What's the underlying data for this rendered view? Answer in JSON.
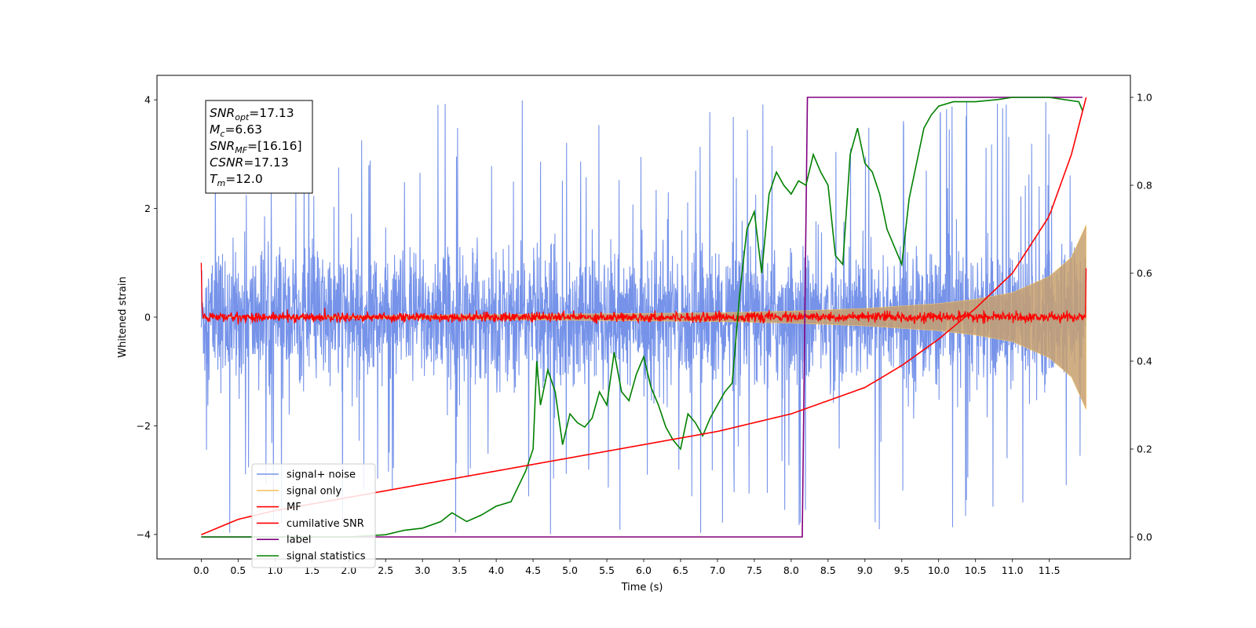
{
  "chart_data": {
    "type": "line",
    "xlabel": "Time (s)",
    "ylabel": "Whitened strain",
    "xlim": [
      -0.6,
      12.6
    ],
    "ylim": [
      -4.45,
      4.45
    ],
    "y2lim": [
      -0.05,
      1.05
    ],
    "x_ticks": [
      0.0,
      0.5,
      1.0,
      1.5,
      2.0,
      2.5,
      3.0,
      3.5,
      4.0,
      4.5,
      5.0,
      5.5,
      6.0,
      6.5,
      7.0,
      7.5,
      8.0,
      8.5,
      9.0,
      9.5,
      10.0,
      10.5,
      11.0,
      11.5
    ],
    "x_tick_labels": [
      "0.0",
      "0.5",
      "1.0",
      "1.5",
      "2.0",
      "2.5",
      "3.0",
      "3.5",
      "4.0",
      "4.5",
      "5.0",
      "5.5",
      "6.0",
      "6.5",
      "7.0",
      "7.5",
      "8.0",
      "8.5",
      "9.0",
      "9.5",
      "10.0",
      "10.5",
      "11.0",
      "11.5"
    ],
    "y_ticks": [
      -4,
      -2,
      0,
      2,
      4
    ],
    "y_tick_labels": [
      "−4",
      "−2",
      "0",
      "2",
      "4"
    ],
    "y2_ticks": [
      0.0,
      0.2,
      0.4,
      0.6,
      0.8,
      1.0
    ],
    "y2_tick_labels": [
      "0.0",
      "0.2",
      "0.4",
      "0.6",
      "0.8",
      "1.0"
    ],
    "grid": false,
    "legend_position": "lower-left",
    "annotation": [
      {
        "sym": "SNR",
        "sub": "opt",
        "val": "=17.13"
      },
      {
        "sym": "M",
        "sub": "c",
        "val": "=6.63"
      },
      {
        "sym": "SNR",
        "sub": "MF",
        "val": "=[16.16]"
      },
      {
        "sym": "CSNR",
        "sub": "",
        "val": "=17.13"
      },
      {
        "sym": "T",
        "sub": "m",
        "val": "=12.0"
      }
    ],
    "series": [
      {
        "name": "signal+ noise",
        "color": "#4169e1",
        "axis": "left",
        "style": "noise band",
        "t_end": 12.0,
        "base_band": 1.25,
        "spike_max": 4.0
      },
      {
        "name": "signal only",
        "color": "#f4c466",
        "axis": "left",
        "style": "chirp",
        "envelope": {
          "x": [
            0.0,
            7.0,
            8.0,
            9.0,
            10.0,
            10.5,
            11.0,
            11.5,
            11.8,
            12.0
          ],
          "y": [
            0.0,
            0.08,
            0.11,
            0.16,
            0.25,
            0.33,
            0.45,
            0.75,
            1.1,
            1.7
          ]
        }
      },
      {
        "name": "MF",
        "color": "#ff0000",
        "axis": "left",
        "style": "noise around zero",
        "start": 1.0,
        "end": 0.9,
        "amp": 0.08
      },
      {
        "name": "cumilative SNR",
        "color": "#ff0000",
        "axis": "right",
        "x": [
          0.0,
          0.5,
          1.0,
          2.0,
          3.0,
          4.0,
          5.0,
          6.0,
          7.0,
          8.0,
          9.0,
          9.5,
          10.0,
          10.5,
          11.0,
          11.5,
          11.8,
          12.0
        ],
        "y": [
          0.005,
          0.04,
          0.06,
          0.09,
          0.12,
          0.15,
          0.18,
          0.21,
          0.24,
          0.28,
          0.34,
          0.39,
          0.45,
          0.52,
          0.6,
          0.73,
          0.87,
          1.0
        ]
      },
      {
        "name": "label",
        "color": "#800080",
        "axis": "right",
        "x": [
          0.0,
          8.15,
          8.22,
          11.95
        ],
        "y": [
          0.0,
          0.0,
          1.0,
          1.0
        ]
      },
      {
        "name": "signal statistics",
        "color": "#008000",
        "axis": "right",
        "x": [
          0.0,
          0.5,
          1.0,
          1.5,
          2.0,
          2.5,
          2.75,
          3.0,
          3.25,
          3.4,
          3.6,
          3.8,
          4.0,
          4.2,
          4.4,
          4.5,
          4.55,
          4.6,
          4.7,
          4.8,
          4.9,
          5.0,
          5.1,
          5.2,
          5.3,
          5.4,
          5.5,
          5.6,
          5.7,
          5.8,
          5.9,
          6.0,
          6.1,
          6.2,
          6.3,
          6.4,
          6.5,
          6.6,
          6.7,
          6.8,
          6.9,
          7.0,
          7.1,
          7.2,
          7.3,
          7.4,
          7.5,
          7.6,
          7.7,
          7.8,
          7.9,
          8.0,
          8.1,
          8.2,
          8.3,
          8.4,
          8.5,
          8.6,
          8.7,
          8.8,
          8.9,
          9.0,
          9.1,
          9.2,
          9.3,
          9.4,
          9.5,
          9.6,
          9.7,
          9.8,
          9.9,
          10.0,
          10.2,
          10.5,
          10.8,
          11.0,
          11.5,
          11.9,
          11.95
        ],
        "y": [
          0.0,
          0.0,
          0.0,
          0.0,
          0.0,
          0.005,
          0.015,
          0.02,
          0.035,
          0.055,
          0.035,
          0.05,
          0.07,
          0.08,
          0.15,
          0.2,
          0.4,
          0.3,
          0.38,
          0.33,
          0.21,
          0.28,
          0.26,
          0.25,
          0.27,
          0.33,
          0.3,
          0.42,
          0.33,
          0.31,
          0.37,
          0.41,
          0.34,
          0.3,
          0.25,
          0.22,
          0.2,
          0.28,
          0.26,
          0.23,
          0.27,
          0.3,
          0.33,
          0.35,
          0.55,
          0.7,
          0.74,
          0.6,
          0.78,
          0.83,
          0.8,
          0.78,
          0.81,
          0.8,
          0.87,
          0.83,
          0.8,
          0.64,
          0.62,
          0.87,
          0.93,
          0.85,
          0.83,
          0.78,
          0.7,
          0.66,
          0.62,
          0.77,
          0.85,
          0.93,
          0.96,
          0.98,
          0.99,
          0.99,
          0.995,
          1.0,
          1.0,
          0.99,
          0.97
        ]
      }
    ]
  }
}
